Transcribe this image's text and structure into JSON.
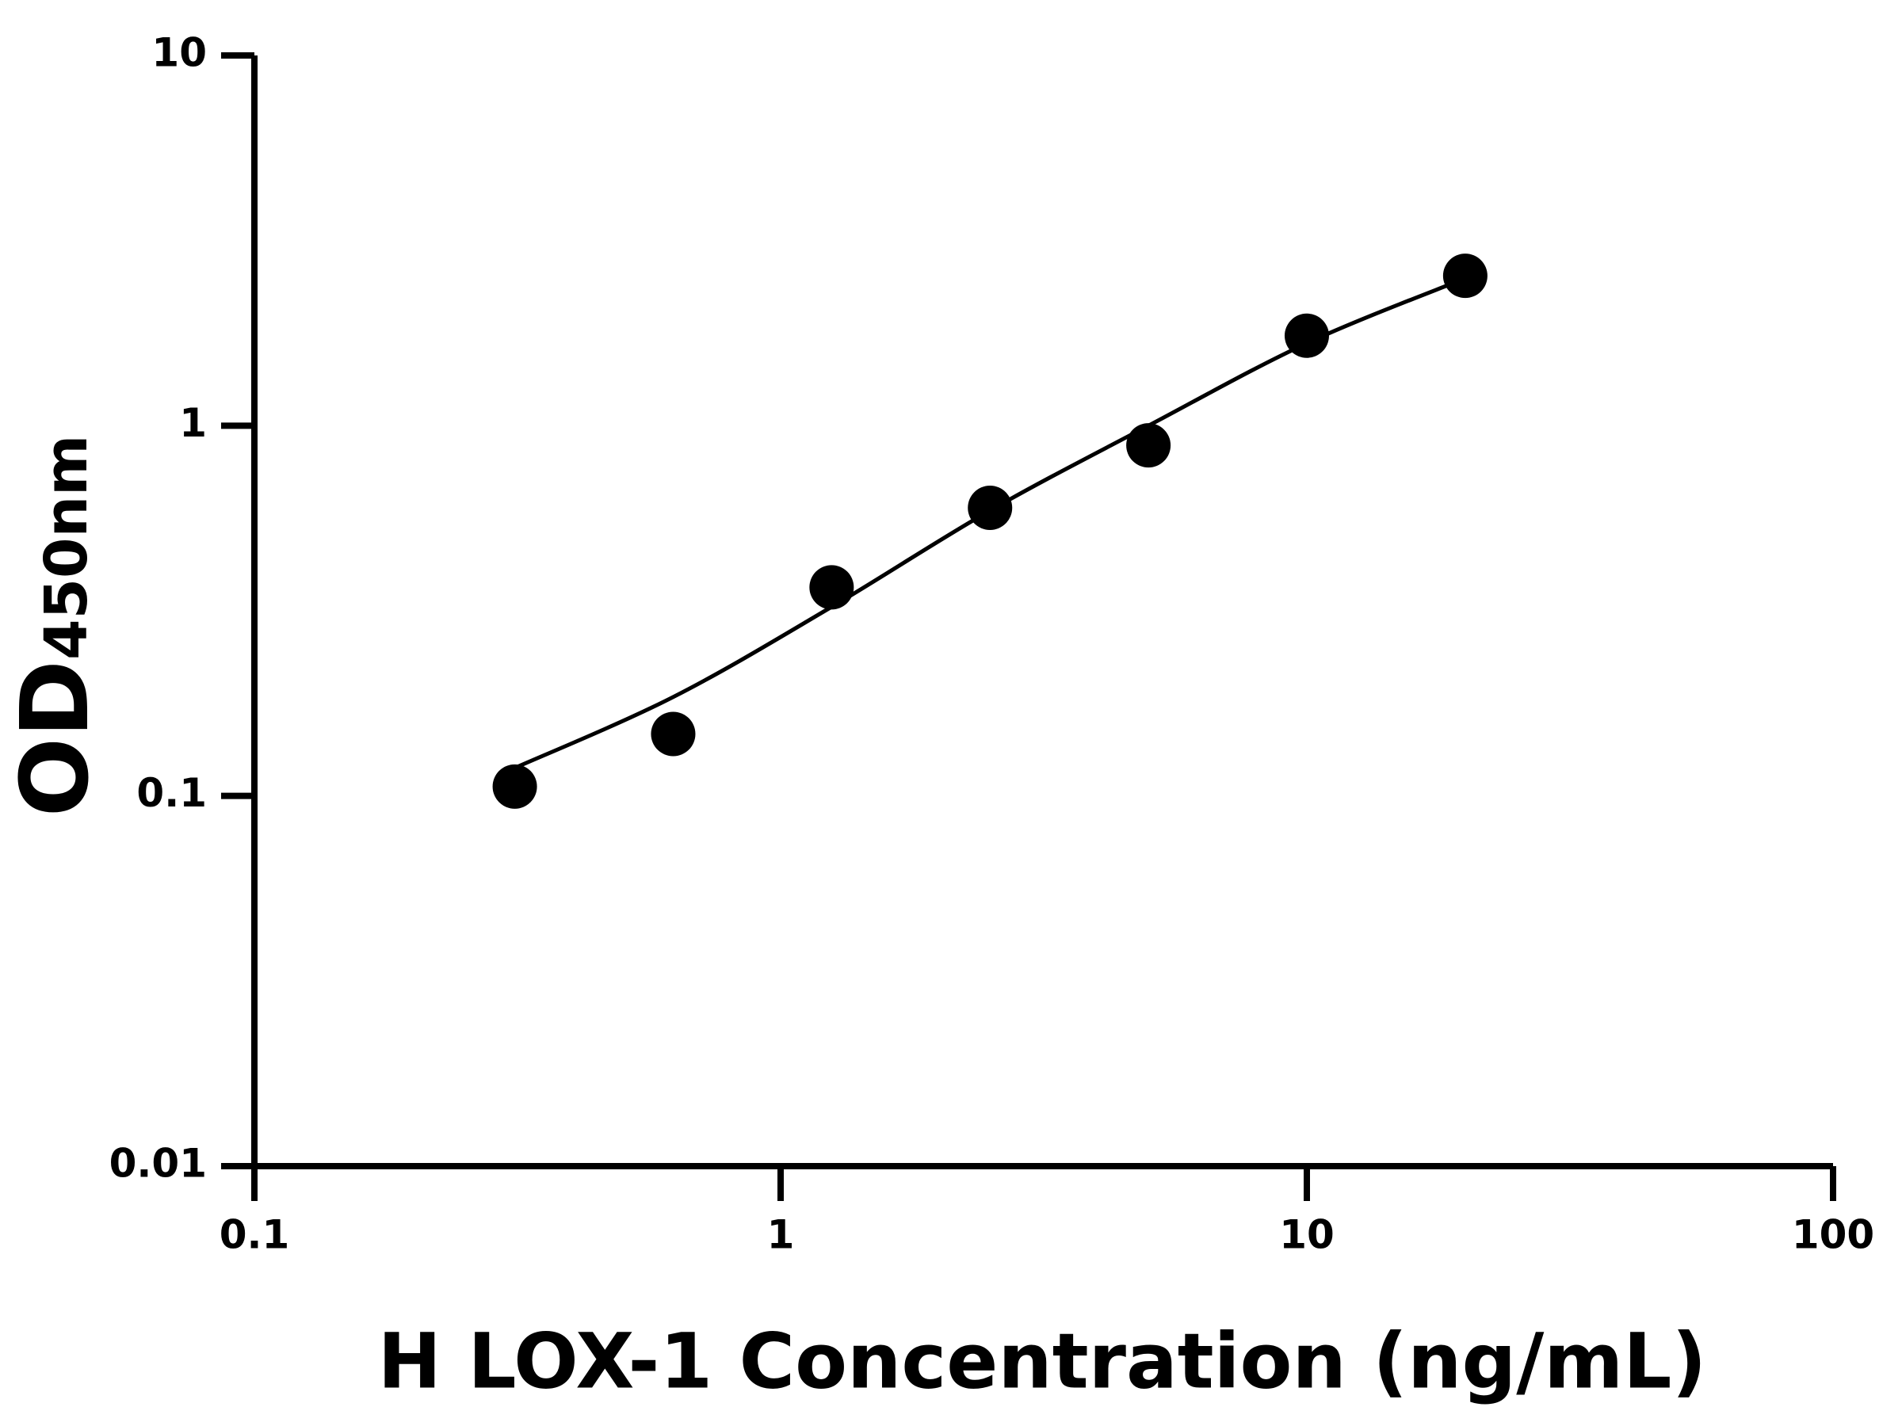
{
  "chart_data": {
    "type": "scatter",
    "x_label": "H LOX-1 Concentration (ng/mL)",
    "y_label": "OD",
    "y_label_sub": "450nm",
    "log_x": true,
    "log_y": true,
    "xlim": [
      0.1,
      100
    ],
    "ylim": [
      0.01,
      10
    ],
    "xticks": [
      0.1,
      1,
      10,
      100
    ],
    "yticks": [
      0.01,
      0.1,
      1,
      10
    ],
    "x": [
      0.3125,
      0.625,
      1.25,
      2.5,
      5,
      10,
      20
    ],
    "values": [
      0.106,
      0.147,
      0.366,
      0.6,
      0.885,
      1.75,
      2.54
    ],
    "color": "#000000",
    "fit": {
      "x": [
        0.3125,
        0.625,
        1.25,
        2.5,
        5,
        10,
        20
      ],
      "values": [
        0.119,
        0.185,
        0.324,
        0.59,
        1.0,
        1.67,
        2.5
      ],
      "color": "#000000"
    }
  }
}
